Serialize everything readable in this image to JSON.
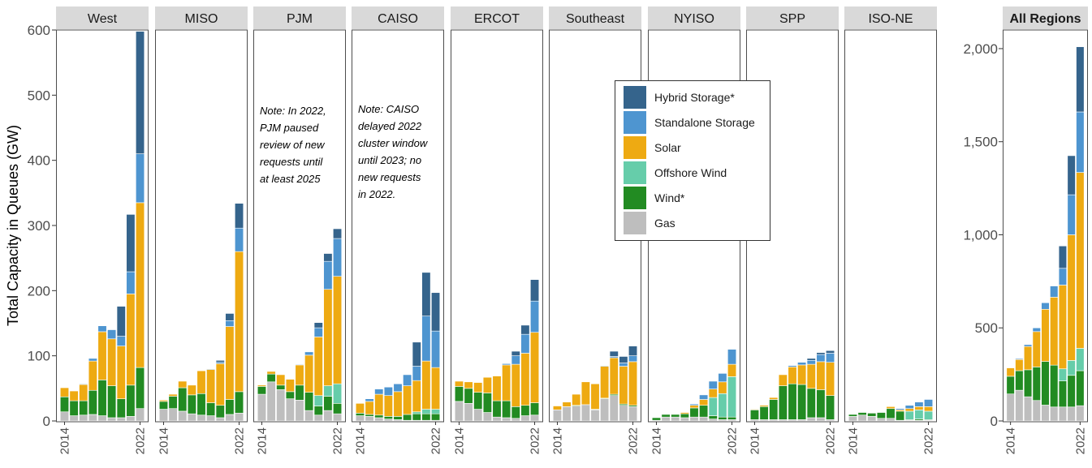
{
  "chart_data": [
    {
      "type": "bar",
      "stacked": true,
      "ylabel": "Total Capacity in Queues (GW)",
      "ylim": [
        0,
        600
      ],
      "yticks": [
        "0",
        "100",
        "200",
        "300",
        "400",
        "500",
        "600"
      ],
      "years": [
        2014,
        2015,
        2016,
        2017,
        2018,
        2019,
        2020,
        2021,
        2022
      ],
      "xtick_labels": [
        "2014",
        "2022"
      ],
      "grid": false,
      "legend_position": "inside, right of center (over Southeast/NYISO panels)",
      "legend": [
        "Hybrid Storage*",
        "Standalone Storage",
        "Solar",
        "Offshore Wind",
        "Wind*",
        "Gas"
      ],
      "colors": {
        "Hybrid Storage*": "#35648c",
        "Standalone Storage": "#4e95d0",
        "Solar": "#eeaa12",
        "Offshore Wind": "#66cdaa",
        "Wind*": "#228b22",
        "Gas": "#bebebe"
      },
      "stack_order_bottom_to_top": [
        "Gas",
        "Wind*",
        "Offshore Wind",
        "Solar",
        "Standalone Storage",
        "Hybrid Storage*"
      ],
      "panels": [
        {
          "name": "West",
          "series": {
            "Gas": [
              14,
              8,
              9,
              10,
              8,
              5,
              5,
              7,
              19
            ],
            "Wind*": [
              23,
              23,
              22,
              37,
              55,
              49,
              29,
              48,
              63
            ],
            "Offshore Wind": [
              0,
              0,
              0,
              0,
              0,
              0,
              0,
              0,
              0
            ],
            "Solar": [
              14,
              15,
              25,
              45,
              74,
              72,
              81,
              140,
              253
            ],
            "Standalone Storage": [
              0,
              0,
              1,
              4,
              9,
              14,
              15,
              34,
              75
            ],
            "Hybrid Storage*": [
              0,
              0,
              0,
              0,
              0,
              0,
              46,
              88,
              188
            ]
          }
        },
        {
          "name": "MISO",
          "series": {
            "Gas": [
              18,
              19,
              15,
              11,
              9,
              8,
              5,
              10,
              12
            ],
            "Wind*": [
              12,
              19,
              36,
              29,
              33,
              20,
              19,
              23,
              33
            ],
            "Offshore Wind": [
              0,
              0,
              0,
              0,
              0,
              0,
              0,
              0,
              0
            ],
            "Solar": [
              2,
              3,
              10,
              15,
              35,
              51,
              64,
              112,
              215
            ],
            "Standalone Storage": [
              0,
              0,
              0,
              0,
              0,
              1,
              2,
              9,
              36
            ],
            "Hybrid Storage*": [
              0,
              0,
              0,
              0,
              0,
              0,
              3,
              11,
              38
            ]
          }
        },
        {
          "name": "PJM",
          "note": "Note: In 2022, PJM paused review of new requests until at least 2025",
          "note_lines": [
            "Note: In 2022,",
            "PJM paused",
            "review of new",
            "requests until",
            "at least 2025"
          ],
          "series": {
            "Gas": [
              41,
              60,
              48,
              34,
              32,
              16,
              9,
              16,
              11
            ],
            "Wind*": [
              12,
              12,
              7,
              11,
              23,
              28,
              14,
              22,
              16
            ],
            "Offshore Wind": [
              0,
              0,
              0,
              0,
              0,
              0,
              16,
              16,
              30
            ],
            "Solar": [
              2,
              4,
              16,
              19,
              31,
              57,
              90,
              148,
              165
            ],
            "Standalone Storage": [
              0,
              0,
              0,
              0,
              1,
              5,
              14,
              43,
              58
            ],
            "Hybrid Storage*": [
              0,
              0,
              0,
              0,
              0,
              0,
              8,
              12,
              15
            ]
          }
        },
        {
          "name": "CAISO",
          "note": "Note: CAISO delayed 2022 cluster window until 2023; no new requests in 2022.",
          "note_lines": [
            "Note: CAISO",
            "delayed 2022",
            "cluster window",
            "until 2023; no",
            "new requests",
            "in 2022."
          ],
          "series": {
            "Gas": [
              8,
              7,
              5,
              3,
              2,
              1,
              1,
              1,
              1
            ],
            "Wind*": [
              4,
              3,
              4,
              4,
              5,
              9,
              10,
              10,
              10
            ],
            "Offshore Wind": [
              0,
              0,
              0,
              0,
              0,
              0,
              3,
              7,
              7
            ],
            "Solar": [
              15,
              20,
              32,
              32,
              38,
              44,
              48,
              74,
              64
            ],
            "Standalone Storage": [
              0,
              4,
              8,
              13,
              12,
              17,
              22,
              69,
              56
            ],
            "Hybrid Storage*": [
              0,
              0,
              0,
              0,
              0,
              0,
              37,
              67,
              59
            ]
          }
        },
        {
          "name": "ERCOT",
          "series": {
            "Gas": [
              30,
              27,
              18,
              13,
              6,
              5,
              4,
              8,
              9
            ],
            "Wind*": [
              23,
              23,
              26,
              30,
              25,
              26,
              18,
              16,
              19
            ],
            "Offshore Wind": [
              0,
              0,
              0,
              0,
              0,
              0,
              0,
              0,
              0
            ],
            "Solar": [
              8,
              10,
              15,
              24,
              38,
              55,
              65,
              80,
              108
            ],
            "Standalone Storage": [
              0,
              0,
              0,
              0,
              0,
              2,
              13,
              29,
              48
            ],
            "Hybrid Storage*": [
              0,
              0,
              0,
              0,
              0,
              0,
              7,
              14,
              33
            ]
          }
        },
        {
          "name": "Southeast",
          "series": {
            "Gas": [
              17,
              22,
              23,
              25,
              17,
              34,
              39,
              24,
              22
            ],
            "Wind*": [
              0,
              0,
              1,
              0,
              1,
              1,
              2,
              2,
              2
            ],
            "Offshore Wind": [
              0,
              0,
              0,
              0,
              0,
              0,
              0,
              0,
              0
            ],
            "Solar": [
              6,
              7,
              17,
              35,
              39,
              49,
              56,
              58,
              67
            ],
            "Standalone Storage": [
              0,
              0,
              0,
              0,
              0,
              1,
              2,
              5,
              9
            ],
            "Hybrid Storage*": [
              0,
              0,
              0,
              0,
              0,
              0,
              8,
              10,
              15
            ]
          }
        },
        {
          "name": "NYISO",
          "series": {
            "Gas": [
              1,
              6,
              6,
              5,
              6,
              6,
              3,
              2,
              2
            ],
            "Wind*": [
              4,
              4,
              4,
              6,
              14,
              18,
              5,
              4,
              4
            ],
            "Offshore Wind": [
              0,
              0,
              0,
              0,
              0,
              0,
              28,
              36,
              62
            ],
            "Solar": [
              0,
              0,
              0,
              2,
              4,
              9,
              13,
              18,
              19
            ],
            "Standalone Storage": [
              0,
              0,
              0,
              0,
              2,
              7,
              12,
              13,
              23
            ],
            "Hybrid Storage*": [
              0,
              0,
              0,
              0,
              0,
              0,
              0,
              0,
              0
            ]
          }
        },
        {
          "name": "SPP",
          "series": {
            "Gas": [
              2,
              2,
              2,
              2,
              2,
              2,
              5,
              5,
              2
            ],
            "Wind*": [
              15,
              20,
              31,
              52,
              55,
              54,
              45,
              43,
              37
            ],
            "Offshore Wind": [
              0,
              0,
              0,
              0,
              0,
              0,
              0,
              0,
              0
            ],
            "Solar": [
              1,
              2,
              3,
              17,
              26,
              30,
              37,
              43,
              51
            ],
            "Standalone Storage": [
              0,
              0,
              0,
              0,
              2,
              4,
              6,
              11,
              14
            ],
            "Hybrid Storage*": [
              0,
              0,
              0,
              0,
              0,
              0,
              3,
              3,
              4
            ]
          }
        },
        {
          "name": "ISO-NE",
          "series": {
            "Gas": [
              7,
              9,
              7,
              4,
              4,
              1,
              1,
              1,
              1
            ],
            "Wind*": [
              3,
              4,
              5,
              9,
              15,
              14,
              1,
              2,
              1
            ],
            "Offshore Wind": [
              0,
              0,
              0,
              0,
              0,
              0,
              13,
              14,
              13
            ],
            "Solar": [
              0,
              0,
              0,
              0,
              3,
              2,
              4,
              5,
              7
            ],
            "Standalone Storage": [
              0,
              0,
              0,
              0,
              0,
              2,
              5,
              7,
              11
            ],
            "Hybrid Storage*": [
              0,
              0,
              0,
              0,
              0,
              0,
              0,
              0,
              0
            ]
          }
        }
      ]
    },
    {
      "type": "bar",
      "stacked": true,
      "ylim": [
        0,
        2100
      ],
      "yticks": [
        "0",
        "500",
        "1,000",
        "1,500",
        "2,000"
      ],
      "ytick_values": [
        0,
        500,
        1000,
        1500,
        2000
      ],
      "years": [
        2014,
        2015,
        2016,
        2017,
        2018,
        2019,
        2020,
        2021,
        2022
      ],
      "xtick_labels": [
        "2014",
        "2022"
      ],
      "panels": [
        {
          "name": "All Regions",
          "series": {
            "Gas": [
              145,
              165,
              130,
              110,
              85,
              75,
              75,
              75,
              82
            ],
            "Wind*": [
              95,
              105,
              145,
              180,
              235,
              225,
              140,
              170,
              188
            ],
            "Offshore Wind": [
              0,
              0,
              0,
              0,
              0,
              0,
              65,
              80,
              120
            ],
            "Solar": [
              45,
              60,
              125,
              190,
              280,
              365,
              450,
              675,
              945
            ],
            "Standalone Storage": [
              0,
              5,
              10,
              20,
              35,
              60,
              90,
              215,
              325
            ],
            "Hybrid Storage*": [
              0,
              0,
              0,
              0,
              0,
              0,
              120,
              210,
              350
            ]
          }
        }
      ]
    }
  ]
}
